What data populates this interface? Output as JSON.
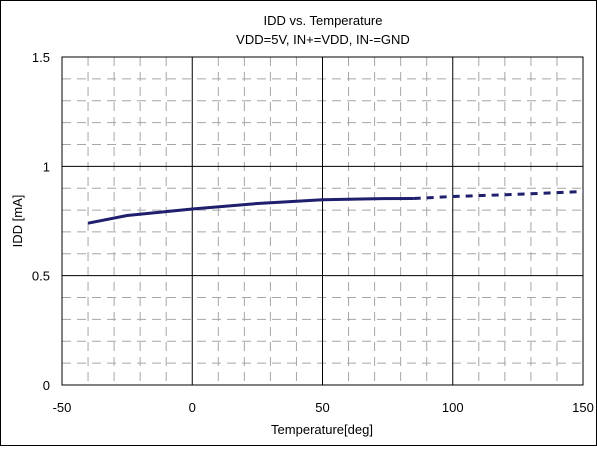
{
  "chart_data": {
    "type": "line",
    "title": "IDD vs. Temperature",
    "subtitle": "VDD=5V, IN+=VDD, IN-=GND",
    "xlabel": "Temperature[deg]",
    "ylabel": "IDD [mA]",
    "xlim": [
      -50,
      150
    ],
    "ylim": [
      0,
      1.5
    ],
    "x_ticks": [
      -50,
      0,
      50,
      100,
      150
    ],
    "y_ticks": [
      0,
      0.5,
      1,
      1.5
    ],
    "x_tick_labels": [
      "-50",
      "0",
      "50",
      "100",
      "150"
    ],
    "y_tick_labels": [
      "0",
      "0.5",
      "1",
      "1.5"
    ],
    "grid": true,
    "line_color": "#1f1f6e",
    "series": [
      {
        "style": "solid",
        "x": [
          -40,
          -25,
          0,
          25,
          50,
          70,
          85
        ],
        "y": [
          0.74,
          0.775,
          0.805,
          0.83,
          0.847,
          0.852,
          0.853
        ]
      },
      {
        "style": "dashed",
        "x": [
          85,
          100,
          125,
          150
        ],
        "y": [
          0.853,
          0.862,
          0.872,
          0.885
        ]
      }
    ]
  }
}
